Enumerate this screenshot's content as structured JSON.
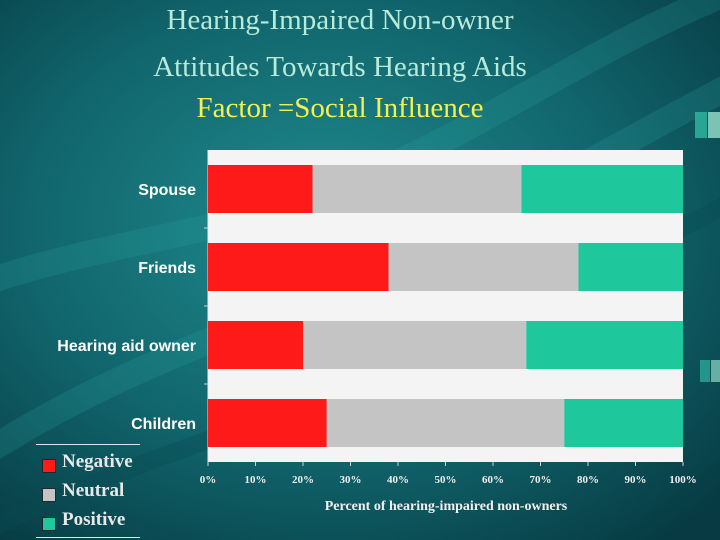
{
  "title": {
    "line1": "Hearing-Impaired Non-owner",
    "line2": "Attitudes Towards Hearing Aids",
    "line3": "Factor =Social Influence"
  },
  "colors": {
    "title_main": "#b7ead9",
    "title_factor": "#f3f24c",
    "negative": "#ff1a1a",
    "neutral": "#c4c4c4",
    "positive": "#1fc79d"
  },
  "chart_data": {
    "type": "bar",
    "orientation": "horizontal",
    "stacked": true,
    "categories": [
      "Spouse",
      "Friends",
      "Hearing aid owner",
      "Children"
    ],
    "series": [
      {
        "name": "Negative",
        "values": [
          22,
          38,
          20,
          25
        ]
      },
      {
        "name": "Neutral",
        "values": [
          44,
          40,
          47,
          50
        ]
      },
      {
        "name": "Positive",
        "values": [
          34,
          22,
          33,
          25
        ]
      }
    ],
    "xticks": [
      "0%",
      "10%",
      "20%",
      "30%",
      "40%",
      "50%",
      "60%",
      "70%",
      "80%",
      "90%",
      "100%"
    ],
    "xlabel": "Percent of hearing-impaired non-owners",
    "ylabel": "",
    "xlim": [
      0,
      100
    ],
    "grid": false,
    "legend_position": "bottom-left"
  }
}
